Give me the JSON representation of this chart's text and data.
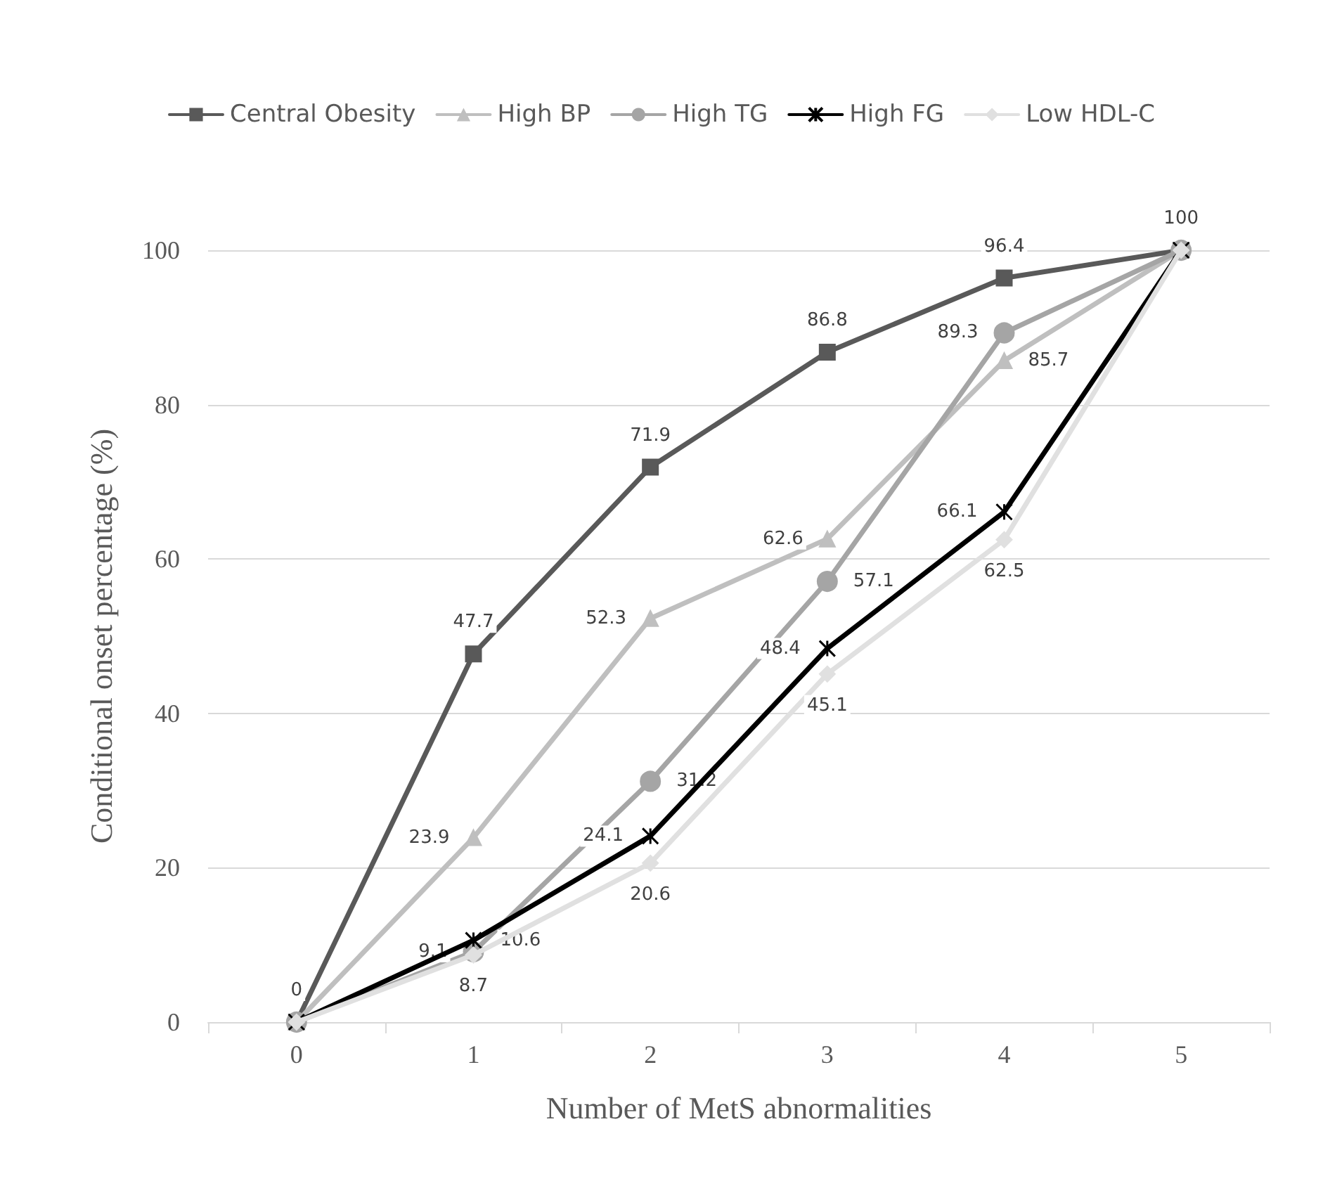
{
  "chart_data": {
    "type": "line",
    "xlabel": "Number of MetS abnormalities",
    "ylabel": "Conditional onset percentage (%)",
    "categories": [
      "0",
      "1",
      "2",
      "3",
      "4",
      "5"
    ],
    "series": [
      {
        "name": "Central Obesity",
        "color": "#595959",
        "marker": "square",
        "values": [
          0,
          47.7,
          71.9,
          86.8,
          96.4,
          100
        ],
        "value_labels": [
          "0",
          "47.7",
          "71.9",
          "86.8",
          "96.4",
          "100"
        ]
      },
      {
        "name": "High BP",
        "color": "#bfbfbf",
        "marker": "triangle",
        "values": [
          0,
          23.9,
          52.3,
          62.6,
          85.7,
          100
        ],
        "value_labels": [
          null,
          "23.9",
          "52.3",
          "62.6",
          "85.7",
          null
        ]
      },
      {
        "name": "High TG",
        "color": "#a5a5a5",
        "marker": "circle",
        "values": [
          0,
          9.1,
          31.2,
          57.1,
          89.3,
          100
        ],
        "value_labels": [
          null,
          "9.1",
          "31.2",
          "57.1",
          "89.3",
          null
        ]
      },
      {
        "name": "High FG",
        "color": "#000000",
        "marker": "cross",
        "values": [
          0,
          10.6,
          24.1,
          48.4,
          66.1,
          100
        ],
        "value_labels": [
          null,
          "10.6",
          "24.1",
          "48.4",
          "66.1",
          null
        ]
      },
      {
        "name": "Low HDL-C",
        "color": "#e0e0e0",
        "marker": "diamond",
        "values": [
          0,
          8.7,
          20.6,
          45.1,
          62.5,
          100
        ],
        "value_labels": [
          null,
          "8.7",
          "20.6",
          "45.1",
          "62.5",
          null
        ]
      }
    ],
    "ylim": [
      0,
      100
    ],
    "yticks": [
      0,
      20,
      40,
      60,
      80,
      100
    ],
    "grid": "y",
    "legend": "top"
  }
}
